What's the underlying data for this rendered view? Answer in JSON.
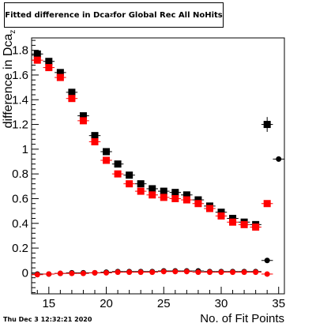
{
  "title": {
    "prefix": "Fitted difference in Dca",
    "subscript": "z",
    "suffix": " for Global Rec All NoHits"
  },
  "footer": {
    "timestamp": "Thu Dec  3 12:32:21 2020"
  },
  "chart_data": {
    "type": "scatter",
    "title": "Fitted difference in Dcaz for Global Rec All NoHits",
    "xlabel": "No. of Fit Points",
    "ylabel": "difference in Dca",
    "ylabel_subscript": "z",
    "xlim": [
      13.5,
      35.5
    ],
    "ylim": [
      -0.17,
      1.9
    ],
    "x_ticks": [
      15,
      20,
      25,
      30,
      35
    ],
    "y_ticks": [
      0,
      0.2,
      0.4,
      0.6,
      0.8,
      1,
      1.2,
      1.4,
      1.6,
      1.8
    ],
    "y_tick_labels": [
      "0",
      "0.2",
      "0.4",
      "0.6",
      "0.8",
      "1",
      "1.2",
      "1.4",
      "1.6",
      "1.8"
    ],
    "grid": false,
    "legend": "none",
    "series": [
      {
        "color": "#000000",
        "marker": "square",
        "points": [
          {
            "x": 14,
            "y": 1.77
          },
          {
            "x": 15,
            "y": 1.71
          },
          {
            "x": 16,
            "y": 1.62
          },
          {
            "x": 17,
            "y": 1.46
          },
          {
            "x": 18,
            "y": 1.27
          },
          {
            "x": 19,
            "y": 1.11
          },
          {
            "x": 20,
            "y": 0.98
          },
          {
            "x": 21,
            "y": 0.88
          },
          {
            "x": 22,
            "y": 0.79
          },
          {
            "x": 23,
            "y": 0.72
          },
          {
            "x": 24,
            "y": 0.68
          },
          {
            "x": 25,
            "y": 0.66
          },
          {
            "x": 26,
            "y": 0.65
          },
          {
            "x": 27,
            "y": 0.63
          },
          {
            "x": 28,
            "y": 0.59
          },
          {
            "x": 29,
            "y": 0.54
          },
          {
            "x": 30,
            "y": 0.49
          },
          {
            "x": 31,
            "y": 0.44
          },
          {
            "x": 32,
            "y": 0.41
          },
          {
            "x": 33,
            "y": 0.39
          },
          {
            "x": 34,
            "y": 1.2
          }
        ],
        "errors": [
          {
            "x": 34,
            "yerr": 0.06
          }
        ]
      },
      {
        "color": "#ff0000",
        "marker": "square",
        "points": [
          {
            "x": 14,
            "y": 1.72
          },
          {
            "x": 15,
            "y": 1.66
          },
          {
            "x": 16,
            "y": 1.58
          },
          {
            "x": 17,
            "y": 1.41
          },
          {
            "x": 18,
            "y": 1.23
          },
          {
            "x": 19,
            "y": 1.06
          },
          {
            "x": 20,
            "y": 0.91
          },
          {
            "x": 21,
            "y": 0.8
          },
          {
            "x": 22,
            "y": 0.72
          },
          {
            "x": 23,
            "y": 0.66
          },
          {
            "x": 24,
            "y": 0.63
          },
          {
            "x": 25,
            "y": 0.61
          },
          {
            "x": 26,
            "y": 0.6
          },
          {
            "x": 27,
            "y": 0.59
          },
          {
            "x": 28,
            "y": 0.56
          },
          {
            "x": 29,
            "y": 0.52
          },
          {
            "x": 30,
            "y": 0.46
          },
          {
            "x": 31,
            "y": 0.41
          },
          {
            "x": 32,
            "y": 0.39
          },
          {
            "x": 33,
            "y": 0.37
          },
          {
            "x": 34,
            "y": 0.56
          }
        ]
      },
      {
        "color": "#000000",
        "marker": "circle",
        "points": [
          {
            "x": 14,
            "y": -0.01
          },
          {
            "x": 15,
            "y": -0.01
          },
          {
            "x": 16,
            "y": -0.005
          },
          {
            "x": 17,
            "y": 0.0
          },
          {
            "x": 18,
            "y": 0.0
          },
          {
            "x": 19,
            "y": 0.0
          },
          {
            "x": 20,
            "y": 0.005
          },
          {
            "x": 21,
            "y": 0.01
          },
          {
            "x": 22,
            "y": 0.01
          },
          {
            "x": 23,
            "y": 0.01
          },
          {
            "x": 24,
            "y": 0.01
          },
          {
            "x": 25,
            "y": 0.015
          },
          {
            "x": 26,
            "y": 0.015
          },
          {
            "x": 27,
            "y": 0.015
          },
          {
            "x": 28,
            "y": 0.015
          },
          {
            "x": 29,
            "y": 0.01
          },
          {
            "x": 30,
            "y": 0.01
          },
          {
            "x": 31,
            "y": 0.01
          },
          {
            "x": 32,
            "y": 0.01
          },
          {
            "x": 33,
            "y": 0.01
          },
          {
            "x": 34,
            "y": 0.1
          },
          {
            "x": 35,
            "y": 0.92
          }
        ]
      },
      {
        "color": "#ff0000",
        "marker": "circle",
        "points": [
          {
            "x": 14,
            "y": -0.015
          },
          {
            "x": 15,
            "y": -0.01
          },
          {
            "x": 16,
            "y": -0.005
          },
          {
            "x": 17,
            "y": -0.005
          },
          {
            "x": 18,
            "y": -0.005
          },
          {
            "x": 19,
            "y": 0.0
          },
          {
            "x": 20,
            "y": 0.0
          },
          {
            "x": 21,
            "y": 0.005
          },
          {
            "x": 22,
            "y": 0.005
          },
          {
            "x": 23,
            "y": 0.005
          },
          {
            "x": 24,
            "y": 0.005
          },
          {
            "x": 25,
            "y": 0.01
          },
          {
            "x": 26,
            "y": 0.01
          },
          {
            "x": 27,
            "y": 0.01
          },
          {
            "x": 28,
            "y": 0.005
          },
          {
            "x": 29,
            "y": 0.005
          },
          {
            "x": 30,
            "y": 0.005
          },
          {
            "x": 31,
            "y": 0.005
          },
          {
            "x": 32,
            "y": 0.005
          },
          {
            "x": 33,
            "y": 0.005
          },
          {
            "x": 34,
            "y": -0.01
          }
        ]
      }
    ]
  }
}
